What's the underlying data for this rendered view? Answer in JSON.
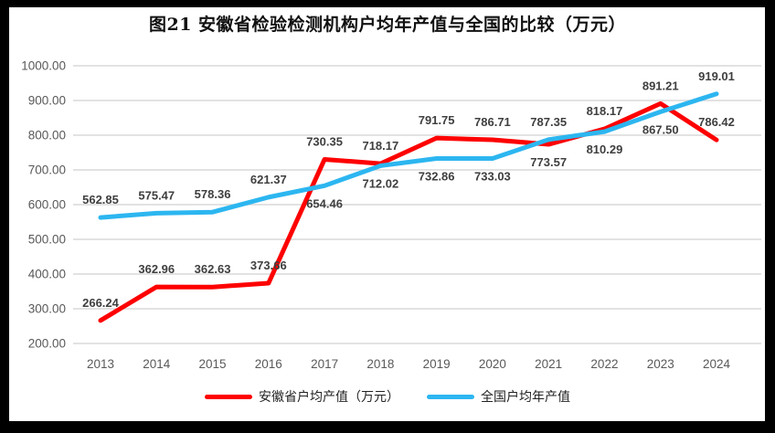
{
  "chart_data": {
    "type": "line",
    "title": "图21 安徽省检验检测机构户均年产值与全国的比较（万元）",
    "categories": [
      "2013",
      "2014",
      "2015",
      "2016",
      "2017",
      "2018",
      "2019",
      "2020",
      "2021",
      "2022",
      "2023",
      "2024"
    ],
    "series": [
      {
        "name": "安徽省户均产值（万元）",
        "color": "#FE0000",
        "values": [
          266.24,
          362.96,
          362.63,
          373.66,
          730.35,
          718.17,
          791.75,
          786.71,
          773.57,
          818.17,
          891.21,
          786.42
        ]
      },
      {
        "name": "全国户均年产值",
        "color": "#2CB6F0",
        "values": [
          562.85,
          575.47,
          578.36,
          621.37,
          654.46,
          712.02,
          732.86,
          733.03,
          787.35,
          810.29,
          867.5,
          919.01
        ]
      }
    ],
    "ylim": [
      200,
      1000
    ],
    "ytick_step": 100,
    "ytick_labels": [
      "1000.00",
      "900.00",
      "800.00",
      "700.00",
      "600.00",
      "500.00",
      "400.00",
      "300.00",
      "200.00"
    ],
    "grid": true,
    "legend_position": "bottom",
    "data_labels_shown": true
  },
  "theme": {
    "gridline_color": "#D9D9D9",
    "axis_text_color": "#595959",
    "data_label_color": "#3F3F3F",
    "background_color": "#FFFFFF",
    "frame_color": "#000000"
  }
}
